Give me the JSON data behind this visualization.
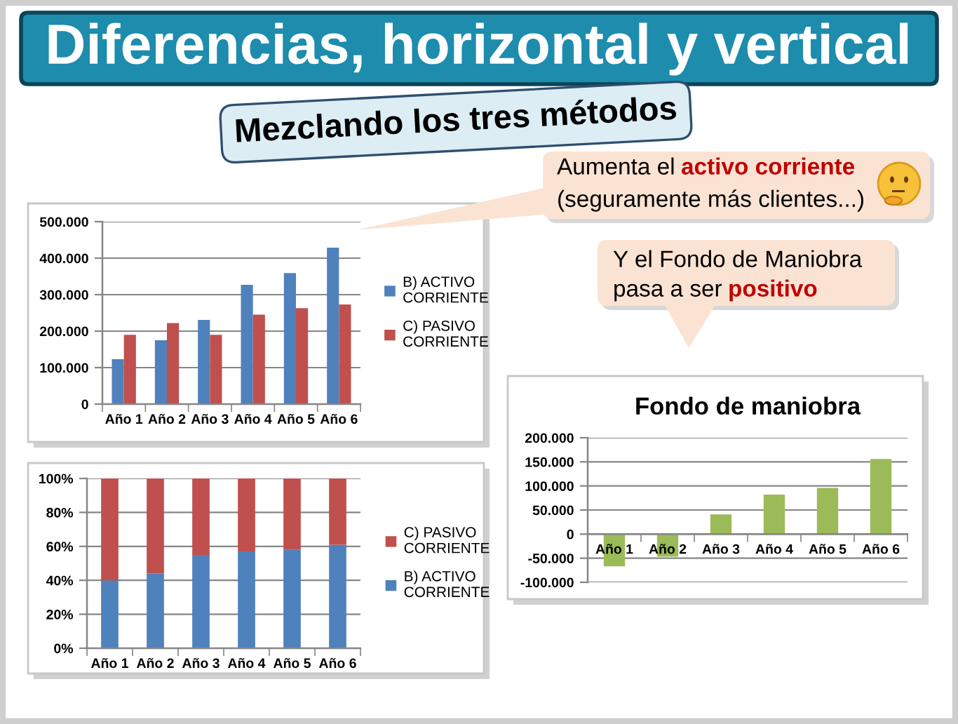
{
  "chart_data": [
    {
      "type": "bar",
      "title": "Diferencias, horizontal y vertical",
      "subtitle": "Mezclando los tres métodos",
      "categories": [
        "Año 1",
        "Año 2",
        "Año 3",
        "Año 4",
        "Año 5",
        "Año 6"
      ],
      "series": [
        {
          "name": "B) ACTIVO\nCORRIENTE",
          "color": "#4f81bd",
          "values": [
            123000,
            175000,
            231000,
            327000,
            359000,
            429000
          ]
        },
        {
          "name": "C) PASIVO\nCORRIENTE",
          "color": "#c0504d",
          "values": [
            190000,
            222000,
            190000,
            245000,
            263000,
            273000
          ]
        }
      ],
      "ylim": [
        0,
        500000
      ],
      "yticks": [
        0,
        {
          "value": 100000,
          "label": "100.000"
        },
        {
          "value": 200000,
          "label": "200.000"
        },
        {
          "value": 300000,
          "label": "300.000"
        },
        {
          "value": 400000,
          "label": "400.000"
        },
        {
          "value": 500000,
          "label": "500.000"
        }
      ],
      "grid": "y",
      "legend": "right",
      "annotations": [
        "Aumenta el",
        "activo corriente",
        "(seguramente más clientes...)"
      ]
    },
    {
      "type": "bar",
      "stacked": true,
      "categories": [
        "Año 1",
        "Año 2",
        "Año 3",
        "Año 4",
        "Año 5",
        "Año 6"
      ],
      "series": [
        {
          "name": "B) ACTIVO\nCORRIENTE",
          "color": "#4f81bd",
          "values": [
            40,
            44,
            55,
            57,
            58,
            61
          ]
        },
        {
          "name": "C) PASIVO\nCORRIENTE",
          "color": "#c0504d",
          "values": [
            60,
            56,
            45,
            43,
            42,
            39
          ]
        }
      ],
      "ylim": [
        0,
        100
      ],
      "yticks": [
        {
          "value": 0,
          "label": "0%"
        },
        {
          "value": 20,
          "label": "20%"
        },
        {
          "value": 40,
          "label": "40%"
        },
        {
          "value": 60,
          "label": "60%"
        },
        {
          "value": 80,
          "label": "80%"
        },
        {
          "value": 100,
          "label": "100%"
        }
      ],
      "grid": "y",
      "legend": "right"
    },
    {
      "type": "bar",
      "title": "Fondo de maniobra",
      "categories": [
        "Año 1",
        "Año 2",
        "Año 3",
        "Año 4",
        "Año 5",
        "Año 6"
      ],
      "values": [
        -67000,
        -47000,
        41000,
        82000,
        96000,
        156000
      ],
      "color": "#9bbb59",
      "ylim": [
        -100000,
        200000
      ],
      "yticks": [
        {
          "value": -100000,
          "label": "-100.000"
        },
        {
          "value": -50000,
          "label": "-50.000"
        },
        0,
        {
          "value": 50000,
          "label": "50.000"
        },
        {
          "value": 100000,
          "label": "100.000"
        },
        {
          "value": 150000,
          "label": "150.000"
        },
        {
          "value": 200000,
          "label": "200.000"
        }
      ],
      "grid": "y",
      "annotations": [
        "Y el Fondo de Maniobra",
        "pasa a ser",
        "positivo"
      ]
    }
  ]
}
